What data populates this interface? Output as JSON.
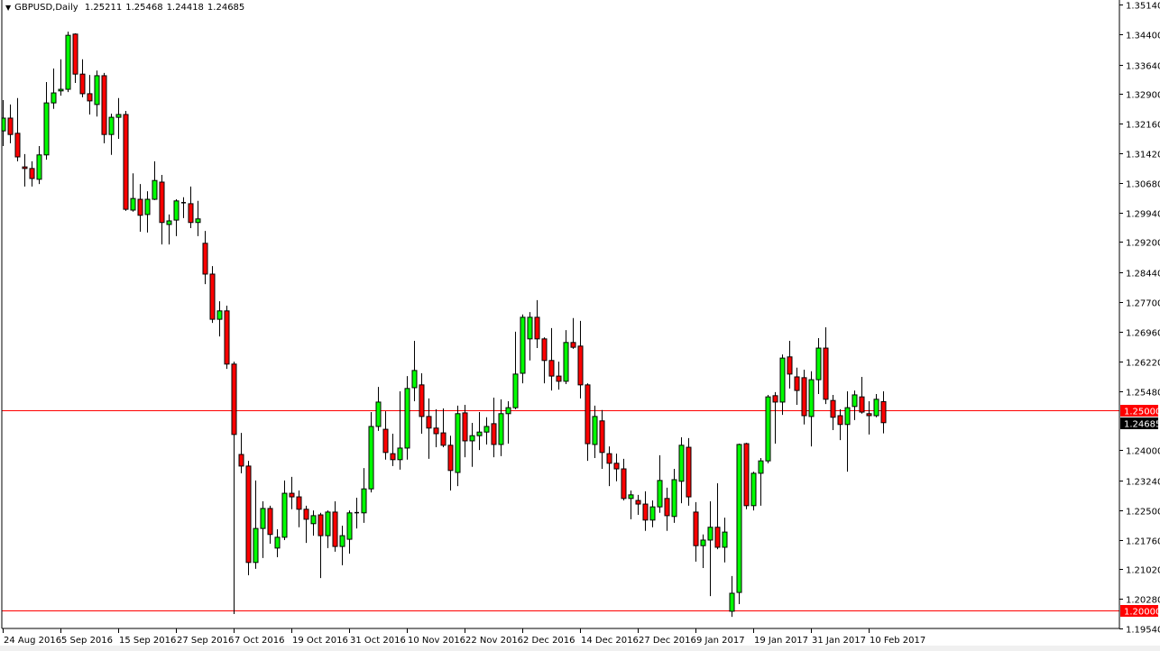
{
  "header": {
    "menu_icon": "triangle-down-icon",
    "symbol": "GBPUSD,Daily",
    "open": "1.25211",
    "high": "1.25468",
    "low": "1.24418",
    "close": "1.24685"
  },
  "colors": {
    "bull": "#00ff00",
    "bear": "#ff0000",
    "wick": "#000000",
    "level_line": "#ff0000",
    "background": "#ffffff"
  },
  "chart_data": {
    "type": "candlestick",
    "title": "GBPUSD,Daily",
    "ylim": [
      1.1954,
      1.3514
    ],
    "grid": false,
    "y_ticks": [
      "1.35140",
      "1.34400",
      "1.33640",
      "1.32900",
      "1.32160",
      "1.31420",
      "1.30680",
      "1.29940",
      "1.29200",
      "1.28440",
      "1.27700",
      "1.26960",
      "1.26220",
      "1.25480",
      "1.24000",
      "1.23240",
      "1.22500",
      "1.21760",
      "1.21020",
      "1.20280",
      "1.19540"
    ],
    "x_ticks": [
      "24 Aug 2016",
      "5 Sep 2016",
      "15 Sep 2016",
      "27 Sep 2016",
      "7 Oct 2016",
      "19 Oct 2016",
      "31 Oct 2016",
      "10 Nov 2016",
      "22 Nov 2016",
      "2 Dec 2016",
      "14 Dec 2016",
      "27 Dec 2016",
      "9 Jan 2017",
      "19 Jan 2017",
      "31 Jan 2017",
      "10 Feb 2017"
    ],
    "x_tick_every_n_bars": 8,
    "horizontal_levels": [
      {
        "value": 1.25,
        "label": "1.25000"
      },
      {
        "value": 1.2,
        "label": "1.20000"
      }
    ],
    "current_price": {
      "value": 1.24685,
      "label": "1.24685"
    },
    "ohlc_fields": [
      "open",
      "high",
      "low",
      "close"
    ],
    "ohlc": [
      [
        1.3198,
        1.3275,
        1.316,
        1.323
      ],
      [
        1.323,
        1.3264,
        1.3167,
        1.3189
      ],
      [
        1.3192,
        1.328,
        1.3122,
        1.3133
      ],
      [
        1.3108,
        1.314,
        1.3059,
        1.3104
      ],
      [
        1.3104,
        1.3122,
        1.3059,
        1.3079
      ],
      [
        1.3077,
        1.316,
        1.3065,
        1.3138
      ],
      [
        1.3138,
        1.332,
        1.3126,
        1.3268
      ],
      [
        1.3268,
        1.3354,
        1.3253,
        1.3293
      ],
      [
        1.3298,
        1.3377,
        1.3286,
        1.3302
      ],
      [
        1.3302,
        1.3446,
        1.3295,
        1.3437
      ],
      [
        1.344,
        1.3442,
        1.3318,
        1.334
      ],
      [
        1.334,
        1.3377,
        1.3282,
        1.3291
      ],
      [
        1.3291,
        1.3338,
        1.3239,
        1.3273
      ],
      [
        1.3264,
        1.3349,
        1.3234,
        1.3336
      ],
      [
        1.3336,
        1.3343,
        1.3167,
        1.3189
      ],
      [
        1.3189,
        1.3241,
        1.3138,
        1.3232
      ],
      [
        1.3232,
        1.328,
        1.3178,
        1.3239
      ],
      [
        1.3239,
        1.3248,
        1.2998,
        1.3002
      ],
      [
        1.3,
        1.3092,
        1.2996,
        1.3029
      ],
      [
        1.3027,
        1.3065,
        1.2946,
        1.2987
      ],
      [
        1.2989,
        1.3047,
        1.2944,
        1.3027
      ],
      [
        1.3027,
        1.3122,
        1.3025,
        1.3074
      ],
      [
        1.307,
        1.3088,
        1.2914,
        1.2969
      ],
      [
        1.2964,
        1.2989,
        1.2914,
        1.2973
      ],
      [
        1.2975,
        1.3027,
        1.2935,
        1.3023
      ],
      [
        1.3018,
        1.3032,
        1.298,
        1.3019
      ],
      [
        1.3016,
        1.3059,
        1.2955,
        1.2969
      ],
      [
        1.2969,
        1.3023,
        1.2935,
        1.2978
      ],
      [
        1.2917,
        1.2948,
        1.2815,
        1.284
      ],
      [
        1.284,
        1.286,
        1.2718,
        1.2727
      ],
      [
        1.2727,
        1.2772,
        1.2684,
        1.2748
      ],
      [
        1.2748,
        1.2761,
        1.2603,
        1.2615
      ],
      [
        1.2615,
        1.2621,
        1.199,
        1.2439
      ],
      [
        1.2389,
        1.2443,
        1.2342,
        1.236
      ],
      [
        1.236,
        1.2373,
        1.2087,
        1.2119
      ],
      [
        1.2119,
        1.2324,
        1.2103,
        1.2204
      ],
      [
        1.2204,
        1.2272,
        1.213,
        1.2254
      ],
      [
        1.2254,
        1.2261,
        1.2166,
        1.2189
      ],
      [
        1.2155,
        1.2202,
        1.2132,
        1.2182
      ],
      [
        1.2182,
        1.2324,
        1.2175,
        1.2292
      ],
      [
        1.2292,
        1.2333,
        1.2252,
        1.2283
      ],
      [
        1.2283,
        1.2299,
        1.2207,
        1.2252
      ],
      [
        1.2252,
        1.2261,
        1.2168,
        1.2227
      ],
      [
        1.2216,
        1.2249,
        1.2186,
        1.2236
      ],
      [
        1.2238,
        1.2243,
        1.208,
        1.2186
      ],
      [
        1.2186,
        1.2249,
        1.2155,
        1.2245
      ],
      [
        1.2245,
        1.2272,
        1.2146,
        1.2159
      ],
      [
        1.2159,
        1.2211,
        1.2112,
        1.2186
      ],
      [
        1.2177,
        1.2249,
        1.2141,
        1.2243
      ],
      [
        1.2243,
        1.2281,
        1.2204,
        1.2244
      ],
      [
        1.2243,
        1.2355,
        1.2218,
        1.2303
      ],
      [
        1.2303,
        1.2495,
        1.2294,
        1.2459
      ],
      [
        1.2459,
        1.2558,
        1.2448,
        1.252
      ],
      [
        1.2452,
        1.2497,
        1.2376,
        1.2394
      ],
      [
        1.2391,
        1.2441,
        1.236,
        1.2376
      ],
      [
        1.2376,
        1.2547,
        1.2351,
        1.2405
      ],
      [
        1.2405,
        1.2585,
        1.2376,
        1.2554
      ],
      [
        1.2556,
        1.2673,
        1.2522,
        1.2599
      ],
      [
        1.2563,
        1.2592,
        1.2441,
        1.2484
      ],
      [
        1.2484,
        1.2529,
        1.2378,
        1.2455
      ],
      [
        1.2455,
        1.2502,
        1.2407,
        1.2441
      ],
      [
        1.2443,
        1.2504,
        1.2407,
        1.2412
      ],
      [
        1.2412,
        1.2436,
        1.2299,
        1.2349
      ],
      [
        1.2344,
        1.2511,
        1.231,
        1.2491
      ],
      [
        1.2493,
        1.2513,
        1.2382,
        1.2423
      ],
      [
        1.2423,
        1.2468,
        1.2358,
        1.2436
      ],
      [
        1.2436,
        1.2495,
        1.24,
        1.2445
      ],
      [
        1.2445,
        1.2482,
        1.2414,
        1.2459
      ],
      [
        1.2466,
        1.2531,
        1.2382,
        1.2414
      ],
      [
        1.2414,
        1.2527,
        1.2385,
        1.2491
      ],
      [
        1.2491,
        1.2522,
        1.2416,
        1.2506
      ],
      [
        1.2506,
        1.2696,
        1.2502,
        1.259
      ],
      [
        1.2592,
        1.2739,
        1.2567,
        1.2732
      ],
      [
        1.2678,
        1.2745,
        1.2624,
        1.2732
      ],
      [
        1.2732,
        1.2775,
        1.2655,
        1.2678
      ],
      [
        1.2678,
        1.2682,
        1.2567,
        1.2624
      ],
      [
        1.2624,
        1.2705,
        1.2549,
        1.2585
      ],
      [
        1.2585,
        1.2621,
        1.2551,
        1.2572
      ],
      [
        1.2572,
        1.27,
        1.2565,
        1.2669
      ],
      [
        1.2669,
        1.273,
        1.2653,
        1.2657
      ],
      [
        1.266,
        1.2723,
        1.2529,
        1.2563
      ],
      [
        1.2563,
        1.2567,
        1.2373,
        1.2416
      ],
      [
        1.2414,
        1.2511,
        1.238,
        1.2484
      ],
      [
        1.2473,
        1.25,
        1.2353,
        1.2394
      ],
      [
        1.2391,
        1.2409,
        1.231,
        1.2367
      ],
      [
        1.2367,
        1.2391,
        1.2322,
        1.2353
      ],
      [
        1.2353,
        1.2378,
        1.2274,
        1.2279
      ],
      [
        1.2279,
        1.2299,
        1.2227,
        1.2288
      ],
      [
        1.2274,
        1.2288,
        1.2238,
        1.2265
      ],
      [
        1.2265,
        1.2297,
        1.2198,
        1.2225
      ],
      [
        1.2225,
        1.2274,
        1.2207,
        1.2258
      ],
      [
        1.2258,
        1.2387,
        1.2243,
        1.2324
      ],
      [
        1.2279,
        1.2306,
        1.2198,
        1.2236
      ],
      [
        1.2234,
        1.2353,
        1.2218,
        1.2326
      ],
      [
        1.2322,
        1.2432,
        1.2267,
        1.2412
      ],
      [
        1.2407,
        1.243,
        1.2261,
        1.2283
      ],
      [
        1.2245,
        1.227,
        1.2121,
        1.2161
      ],
      [
        1.2161,
        1.2189,
        1.2105,
        1.2175
      ],
      [
        1.2175,
        1.2272,
        1.2035,
        1.2207
      ],
      [
        1.2207,
        1.2317,
        1.2152,
        1.2157
      ],
      [
        1.2157,
        1.2231,
        1.2119,
        1.2195
      ],
      [
        1.1997,
        1.2085,
        1.1983,
        1.2042
      ],
      [
        1.2044,
        1.2416,
        1.2015,
        1.2414
      ],
      [
        1.2416,
        1.2418,
        1.2252,
        1.2261
      ],
      [
        1.2261,
        1.2346,
        1.2249,
        1.2342
      ],
      [
        1.2342,
        1.238,
        1.2261,
        1.2373
      ],
      [
        1.2373,
        1.2538,
        1.2367,
        1.2533
      ],
      [
        1.2536,
        1.2545,
        1.2416,
        1.252
      ],
      [
        1.252,
        1.2639,
        1.2488,
        1.263
      ],
      [
        1.2633,
        1.2673,
        1.2554,
        1.259
      ],
      [
        1.2583,
        1.2606,
        1.2513,
        1.2549
      ],
      [
        1.2581,
        1.2601,
        1.2464,
        1.2486
      ],
      [
        1.2484,
        1.2597,
        1.2409,
        1.2576
      ],
      [
        1.2576,
        1.268,
        1.254,
        1.2655
      ],
      [
        1.2655,
        1.2707,
        1.2515,
        1.2527
      ],
      [
        1.2524,
        1.2538,
        1.245,
        1.2482
      ],
      [
        1.2486,
        1.2502,
        1.2425,
        1.2464
      ],
      [
        1.2464,
        1.2547,
        1.2346,
        1.2506
      ],
      [
        1.2509,
        1.2549,
        1.2475,
        1.2538
      ],
      [
        1.2533,
        1.2583,
        1.2491,
        1.2495
      ],
      [
        1.2491,
        1.2522,
        1.2439,
        1.2486
      ],
      [
        1.2486,
        1.254,
        1.2482,
        1.2527
      ],
      [
        1.25211,
        1.25468,
        1.24418,
        1.24685
      ]
    ]
  }
}
